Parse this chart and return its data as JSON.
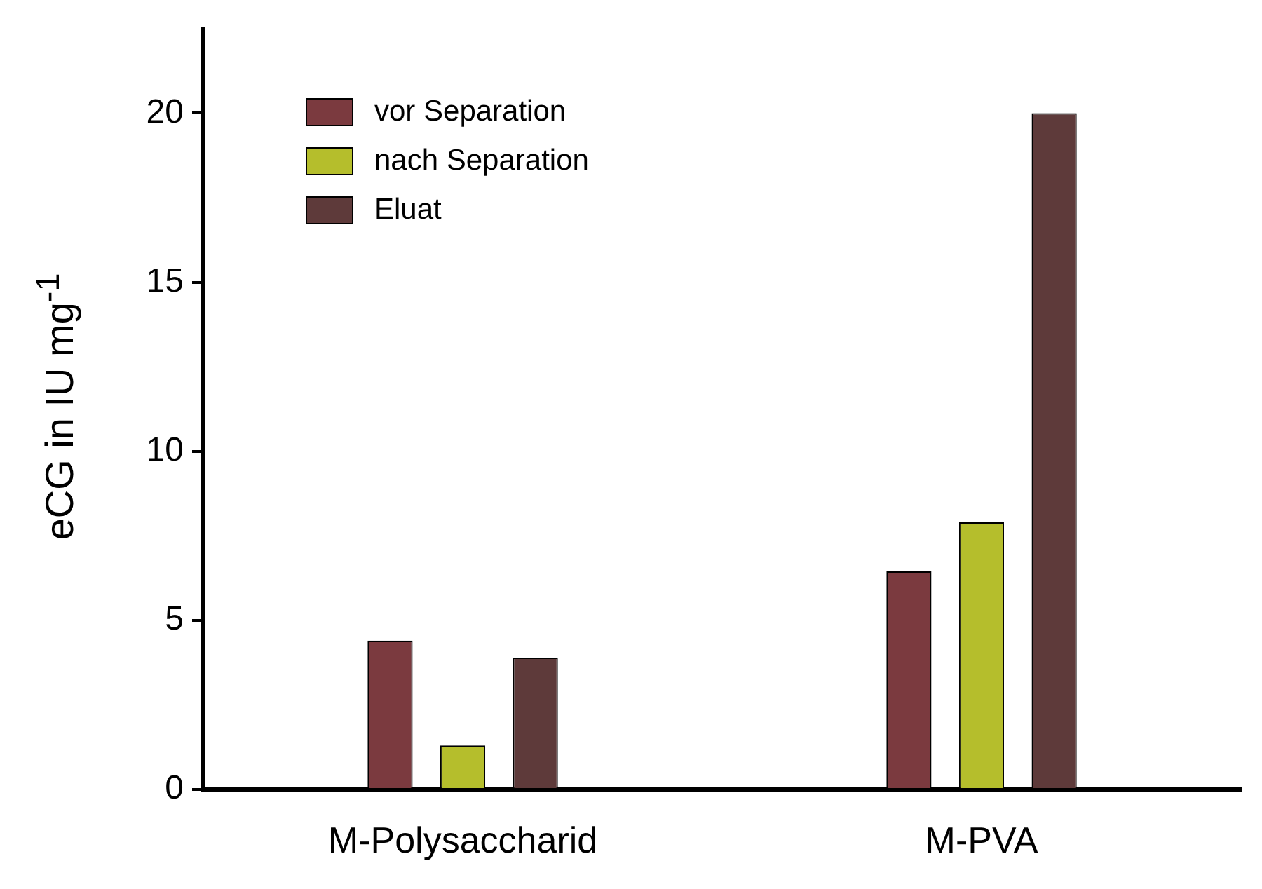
{
  "chart_data": {
    "type": "bar",
    "ylabel": "eCG in IU mg$^{-1}$",
    "categories": [
      "M-Polysaccharid",
      "M-PVA"
    ],
    "series": [
      {
        "name": "vor Separation",
        "color": "#7b3a3f",
        "values": [
          4.4,
          6.45
        ]
      },
      {
        "name": "nach Separation",
        "color": "#b5be2c",
        "values": [
          1.3,
          7.9
        ]
      },
      {
        "name": "Eluat",
        "color": "#5e3a3a",
        "values": [
          3.9,
          20
        ]
      }
    ],
    "ylim": [
      0,
      22.5
    ],
    "yticks": [
      0,
      5,
      10,
      15,
      20
    ],
    "grid": false,
    "legend": "top left"
  }
}
